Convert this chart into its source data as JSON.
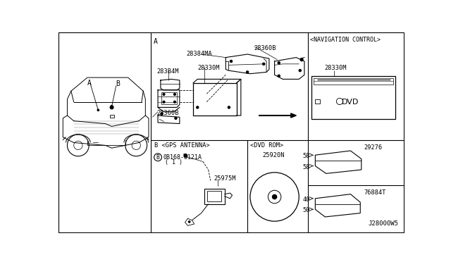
{
  "bg_color": "#ffffff",
  "line_color": "#000000",
  "diagram_id": "J28000W5",
  "nav_label": "<NAVIGATION CONTROL>",
  "dvd_rom_label": "<DVD ROM>",
  "gps_label": "B <GPS ANTENNA>",
  "label_A": "A",
  "label_B": "B",
  "part_283B4M": "283B4M",
  "part_28330M": "28330M",
  "part_28384MA": "28384MA",
  "part_28360B": "28360B",
  "part_28360B2": "28360B",
  "part_28330M_nav": "28330M",
  "part_0B168": "0B168-6121A",
  "part_0B168b": "( 1 )",
  "part_25975M": "25975M",
  "part_25920N": "25920N",
  "part_29276": "29276",
  "part_76884T": "76884T",
  "dim_58a": "58",
  "dim_58b": "58",
  "dim_40": "40",
  "dim_50": "50"
}
